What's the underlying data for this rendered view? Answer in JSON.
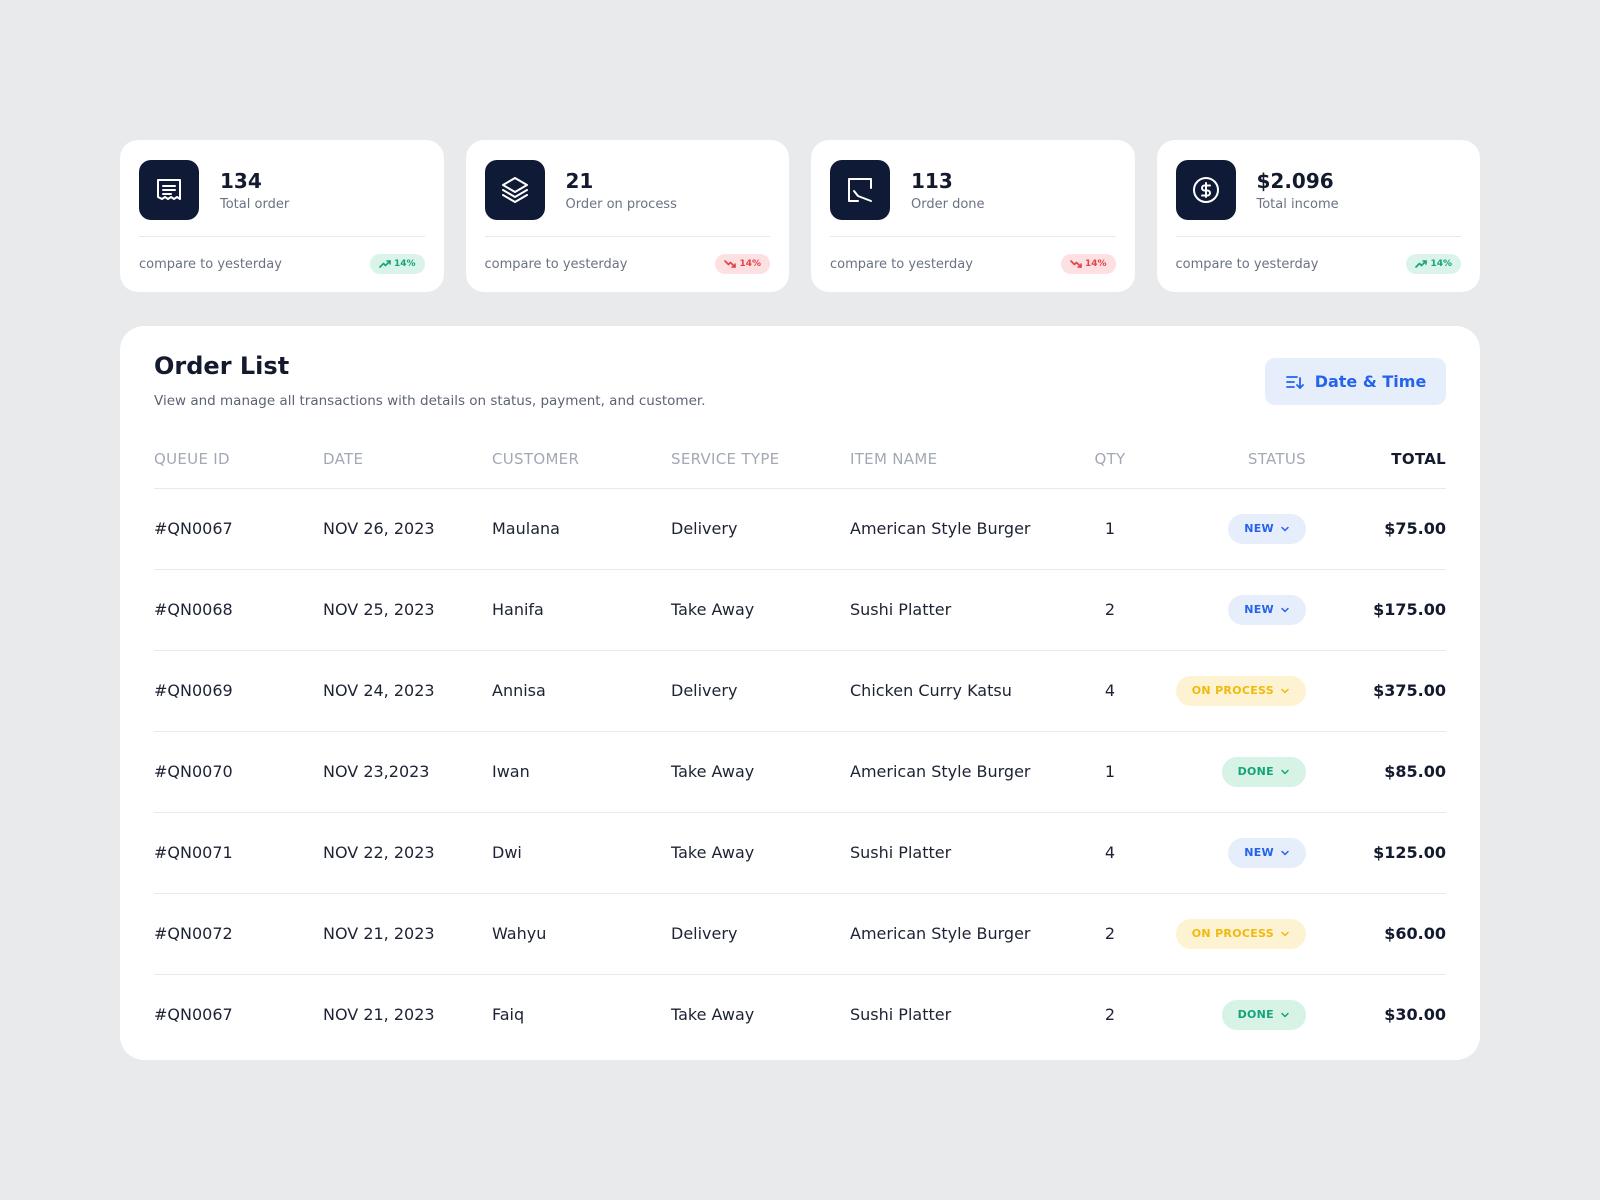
{
  "stats": [
    {
      "value": "134",
      "label": "Total order",
      "icon": "receipt-icon",
      "compare": "compare to yesterday",
      "trend": "up",
      "trend_value": "14%"
    },
    {
      "value": "21",
      "label": "Order on process",
      "icon": "layers-icon",
      "compare": "compare to yesterday",
      "trend": "down",
      "trend_value": "14%"
    },
    {
      "value": "113",
      "label": "Order done",
      "icon": "checkbox-icon",
      "compare": "compare to yesterday",
      "trend": "down",
      "trend_value": "14%"
    },
    {
      "value": "$2.096",
      "label": "Total income",
      "icon": "dollar-icon",
      "compare": "compare to yesterday",
      "trend": "up",
      "trend_value": "14%"
    }
  ],
  "order_list": {
    "title": "Order List",
    "subtitle": "View and manage all transactions with details on status, payment, and customer.",
    "filter_button": {
      "label": "Date & Time",
      "icon": "sort-icon"
    },
    "columns": [
      "QUEUE ID",
      "DATE",
      "CUSTOMER",
      "SERVICE TYPE",
      "ITEM NAME",
      "QTY",
      "STATUS",
      "TOTAL"
    ],
    "rows": [
      {
        "queue_id": "#QN0067",
        "date": "NOV 26, 2023",
        "customer": "Maulana",
        "service": "Delivery",
        "item": "American Style Burger",
        "qty": "1",
        "status": "NEW",
        "total": "$75.00"
      },
      {
        "queue_id": "#QN0068",
        "date": "NOV 25, 2023",
        "customer": "Hanifa",
        "service": "Take Away",
        "item": "Sushi Platter",
        "qty": "2",
        "status": "NEW",
        "total": "$175.00"
      },
      {
        "queue_id": "#QN0069",
        "date": "NOV 24, 2023",
        "customer": "Annisa",
        "service": "Delivery",
        "item": "Chicken Curry Katsu",
        "qty": "4",
        "status": "ON PROCESS",
        "total": "$375.00"
      },
      {
        "queue_id": "#QN0070",
        "date": "NOV 23,2023",
        "customer": "Iwan",
        "service": "Take Away",
        "item": "American Style Burger",
        "qty": "1",
        "status": "DONE",
        "total": "$85.00"
      },
      {
        "queue_id": "#QN0071",
        "date": "NOV 22, 2023",
        "customer": "Dwi",
        "service": "Take Away",
        "item": "Sushi Platter",
        "qty": "4",
        "status": "NEW",
        "total": "$125.00"
      },
      {
        "queue_id": "#QN0072",
        "date": "NOV 21, 2023",
        "customer": "Wahyu",
        "service": "Delivery",
        "item": "American Style Burger",
        "qty": "2",
        "status": "ON PROCESS",
        "total": "$60.00"
      },
      {
        "queue_id": "#QN0067",
        "date": "NOV 21, 2023",
        "customer": "Faiq",
        "service": "Take Away",
        "item": "Sushi Platter",
        "qty": "2",
        "status": "DONE",
        "total": "$30.00"
      }
    ]
  },
  "colors": {
    "background": "#e9eaec",
    "icon_tile": "#0f1a36",
    "accent_blue": "#2563eb",
    "status_new": "#2563eb",
    "status_on_process": "#f0b90b",
    "status_done": "#16a37a",
    "trend_up": "#16a37a",
    "trend_down": "#e2424b"
  }
}
